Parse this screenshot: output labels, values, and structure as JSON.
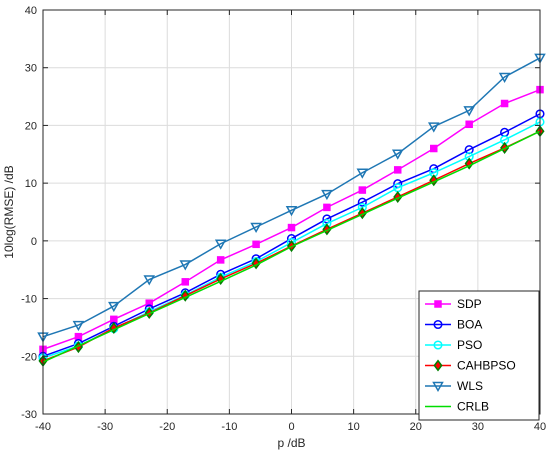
{
  "chart_data": {
    "type": "line",
    "title": "",
    "xlabel": "p /dB",
    "ylabel": "10log(RMSE) /dB",
    "xlim": [
      -40,
      40
    ],
    "ylim": [
      -30,
      40
    ],
    "xticks": [
      -40,
      -30,
      -20,
      -10,
      0,
      10,
      20,
      30,
      40
    ],
    "yticks": [
      -30,
      -20,
      -10,
      0,
      10,
      20,
      30,
      40
    ],
    "grid": true,
    "legend_position": "bottom-right",
    "x": [
      -40,
      -34.3,
      -28.6,
      -22.9,
      -17.1,
      -11.4,
      -5.7,
      0,
      5.7,
      11.4,
      17.1,
      22.9,
      28.6,
      34.3,
      40
    ],
    "series": [
      {
        "name": "SDP",
        "color": "#ff00ff",
        "marker": "square",
        "values": [
          -18.8,
          -16.6,
          -13.6,
          -10.8,
          -7.1,
          -3.3,
          -0.6,
          2.3,
          5.8,
          8.8,
          12.3,
          16.0,
          20.2,
          23.8,
          26.2
        ]
      },
      {
        "name": "BOA",
        "color": "#0000ff",
        "marker": "circle",
        "values": [
          -20.0,
          -17.8,
          -14.8,
          -11.8,
          -9.0,
          -5.8,
          -3.1,
          0.4,
          3.8,
          6.7,
          9.9,
          12.5,
          15.8,
          18.8,
          22.0
        ]
      },
      {
        "name": "PSO",
        "color": "#00ffff",
        "marker": "circle",
        "values": [
          -20.3,
          -18.2,
          -15.2,
          -12.3,
          -9.4,
          -6.3,
          -3.6,
          -0.3,
          3.0,
          5.8,
          9.2,
          11.8,
          14.6,
          17.5,
          20.6
        ]
      },
      {
        "name": "CAHBPSO",
        "color": "#ff0000",
        "marker": "diamond",
        "values": [
          -20.8,
          -18.4,
          -15.1,
          -12.5,
          -9.5,
          -6.6,
          -3.9,
          -0.9,
          2.0,
          4.8,
          7.6,
          10.5,
          13.4,
          16.1,
          19.0
        ]
      },
      {
        "name": "WLS",
        "color": "#1f77b4",
        "marker": "triangle-down",
        "values": [
          -16.6,
          -14.6,
          -11.3,
          -6.7,
          -4.1,
          -0.5,
          2.4,
          5.3,
          8.1,
          11.8,
          15.1,
          19.8,
          22.6,
          28.4,
          31.7
        ]
      },
      {
        "name": "CRLB",
        "color": "#00dd00",
        "marker": "none",
        "values": [
          -21.0,
          -18.2,
          -15.4,
          -12.6,
          -9.8,
          -7.0,
          -4.2,
          -1.0,
          1.8,
          4.6,
          7.4,
          10.2,
          13.0,
          16.0,
          19.0
        ]
      }
    ]
  }
}
